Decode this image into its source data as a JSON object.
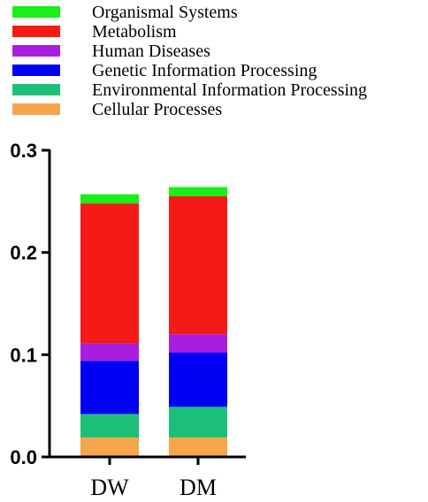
{
  "chart_data": {
    "type": "bar",
    "stacked": true,
    "categories": [
      "DW",
      "DM"
    ],
    "series": [
      {
        "name": "Cellular Processes",
        "color": "#F5A54A",
        "values": [
          0.019,
          0.019
        ]
      },
      {
        "name": "Environmental Information Processing",
        "color": "#1DBF78",
        "values": [
          0.023,
          0.03
        ]
      },
      {
        "name": "Genetic Information Processing",
        "color": "#0000F5",
        "values": [
          0.052,
          0.053
        ]
      },
      {
        "name": "Human Diseases",
        "color": "#A81EE0",
        "values": [
          0.017,
          0.018
        ]
      },
      {
        "name": "Metabolism",
        "color": "#F51A16",
        "values": [
          0.137,
          0.135
        ]
      },
      {
        "name": "Organismal Systems",
        "color": "#1AEF1A",
        "values": [
          0.009,
          0.009
        ]
      }
    ],
    "legend_order": [
      "Organismal Systems",
      "Metabolism",
      "Human Diseases",
      "Genetic Information Processing",
      "Environmental Information Processing",
      "Cellular Processes"
    ],
    "ylim": [
      0,
      0.3
    ],
    "yticks": [
      0.0,
      0.1,
      0.2,
      0.3
    ],
    "ytick_labels": [
      "0.0",
      "0.1",
      "0.2",
      "0.3"
    ],
    "title": "",
    "xlabel": "",
    "ylabel": "",
    "legend_position": "top",
    "grid": false
  }
}
